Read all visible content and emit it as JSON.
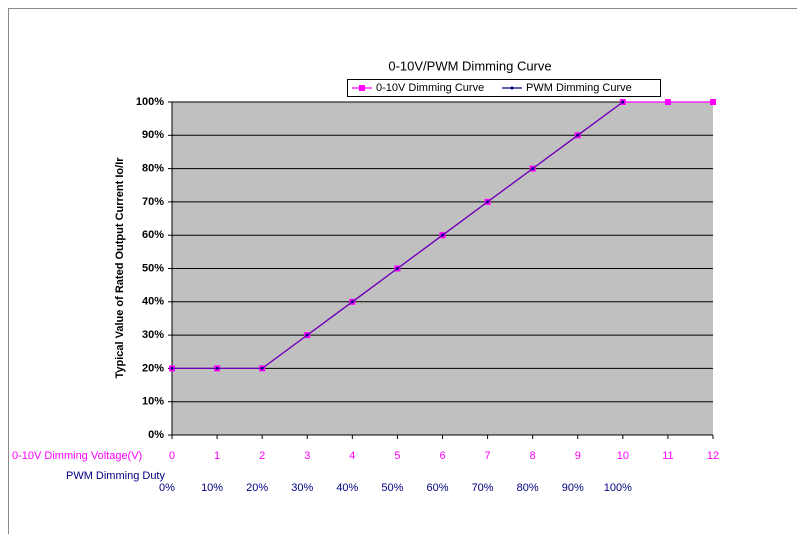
{
  "chart_data": {
    "type": "line",
    "title": "0-10V/PWM Dimming Curve",
    "y_label": "Typical Value of Rated Output Current Io/Ir",
    "x_label": "0-10V Dimming Voltage(V)",
    "x2_label": "PWM Dimming Duty",
    "x": [
      0,
      1,
      2,
      3,
      4,
      5,
      6,
      7,
      8,
      9,
      10,
      11,
      12
    ],
    "x2_labels": [
      "0%",
      "10%",
      "20%",
      "30%",
      "40%",
      "50%",
      "60%",
      "70%",
      "80%",
      "90%",
      "100%"
    ],
    "xlim": [
      0,
      12
    ],
    "xticks": [
      0,
      1,
      2,
      3,
      4,
      5,
      6,
      7,
      8,
      9,
      10,
      11,
      12
    ],
    "ylim": [
      0,
      100
    ],
    "yticks": [
      {
        "value": 0,
        "label": "0%"
      },
      {
        "value": 10,
        "label": "10%"
      },
      {
        "value": 20,
        "label": "20%"
      },
      {
        "value": 30,
        "label": "30%"
      },
      {
        "value": 40,
        "label": "40%"
      },
      {
        "value": 50,
        "label": "50%"
      },
      {
        "value": 60,
        "label": "60%"
      },
      {
        "value": 70,
        "label": "70%"
      },
      {
        "value": 80,
        "label": "80%"
      },
      {
        "value": 90,
        "label": "90%"
      },
      {
        "value": 100,
        "label": "100%"
      }
    ],
    "grid": true,
    "series": [
      {
        "name": "0-10V Dimming Curve",
        "color": "#ff00ff",
        "values": [
          20,
          20,
          20,
          30,
          40,
          50,
          60,
          70,
          80,
          90,
          100,
          100,
          100
        ]
      },
      {
        "name": "PWM Dimming Curve",
        "color": "#000080",
        "values": [
          20,
          20,
          20,
          30,
          40,
          50,
          60,
          70,
          80,
          90,
          100,
          null,
          null
        ]
      }
    ]
  }
}
